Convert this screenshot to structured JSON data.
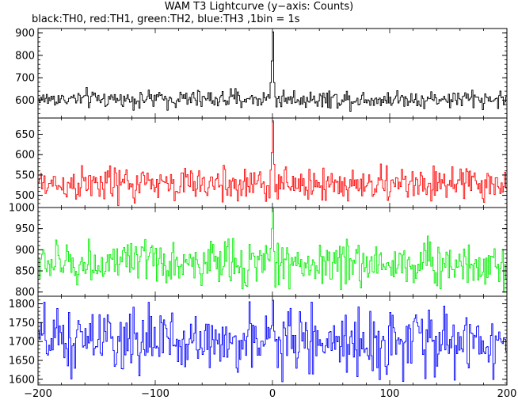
{
  "title": "WAM T3 Lightcurve (y−axis: Counts)",
  "subtitle": "black:TH0, red:TH1, green:TH2, blue:TH3 ,1bin = 1s",
  "chart_data": {
    "type": "line",
    "title": "WAM T3 Lightcurve (y−axis: Counts)",
    "subtitle": "black:TH0, red:TH1, green:TH2, blue:TH3 ,1bin = 1s",
    "xlabel": "",
    "ylabel": "Counts",
    "x_range": [
      -200,
      200
    ],
    "x_ticks": [
      -200,
      -100,
      0,
      100,
      200
    ],
    "x_tick_labels": [
      "−200",
      "−100",
      "0",
      "100",
      "200"
    ],
    "bin_seconds": 1,
    "grid": false,
    "panels": [
      {
        "name": "TH0",
        "color": "#000000",
        "baseline": 605,
        "noise": 20,
        "peak": 910,
        "ylim": [
          520,
          920
        ],
        "yticks": [
          600,
          700,
          800,
          900
        ]
      },
      {
        "name": "TH1",
        "color": "#ff0000",
        "baseline": 527,
        "noise": 22,
        "peak": 670,
        "ylim": [
          470,
          690
        ],
        "yticks": [
          500,
          550,
          600,
          650
        ]
      },
      {
        "name": "TH2",
        "color": "#00ee00",
        "baseline": 868,
        "noise": 27,
        "peak": 1000,
        "ylim": [
          790,
          1000
        ],
        "yticks": [
          800,
          850,
          900,
          950,
          1000
        ]
      },
      {
        "name": "TH3",
        "color": "#0000ff",
        "baseline": 1700,
        "noise": 42,
        "peak": 1800,
        "ylim": [
          1585,
          1820
        ],
        "yticks": [
          1600,
          1650,
          1700,
          1750,
          1800
        ]
      }
    ]
  }
}
